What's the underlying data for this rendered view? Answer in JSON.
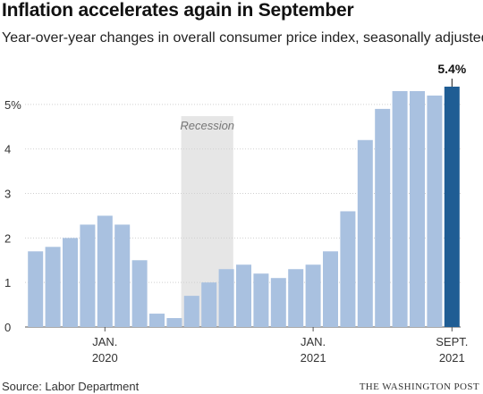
{
  "header": {
    "title": "Inflation accelerates again in September",
    "subtitle": "Year-over-year changes in overall consumer price index, seasonally adjusted"
  },
  "footer": {
    "source": "Source: Labor Department",
    "credit": "THE WASHINGTON POST"
  },
  "colors": {
    "bar": "#a9c1e0",
    "highlight_bar": "#1f5d94",
    "recession_band": "#e6e6e6",
    "gridline": "#d0d0d0",
    "text": "#222222"
  },
  "chart_data": {
    "type": "bar",
    "title": "Inflation accelerates again in September",
    "subtitle": "Year-over-year changes in overall consumer price index, seasonally adjusted",
    "categories": [
      "2019-09",
      "2019-10",
      "2019-11",
      "2019-12",
      "2020-01",
      "2020-02",
      "2020-03",
      "2020-04",
      "2020-05",
      "2020-06",
      "2020-07",
      "2020-08",
      "2020-09",
      "2020-10",
      "2020-11",
      "2020-12",
      "2021-01",
      "2021-02",
      "2021-03",
      "2021-04",
      "2021-05",
      "2021-06",
      "2021-07",
      "2021-08",
      "2021-09"
    ],
    "values": [
      1.7,
      1.8,
      2.0,
      2.3,
      2.5,
      2.3,
      1.5,
      0.3,
      0.2,
      0.7,
      1.0,
      1.3,
      1.4,
      1.2,
      1.1,
      1.3,
      1.4,
      1.7,
      2.6,
      4.2,
      4.9,
      5.3,
      5.3,
      5.2,
      5.4
    ],
    "highlight_index": 24,
    "highlight_label": "5.4%",
    "ylim": [
      0,
      5.5
    ],
    "yticks": [
      {
        "value": 0,
        "label": "0"
      },
      {
        "value": 1,
        "label": "1"
      },
      {
        "value": 2,
        "label": "2"
      },
      {
        "value": 3,
        "label": "3"
      },
      {
        "value": 4,
        "label": "4"
      },
      {
        "value": 5,
        "label": "5%"
      }
    ],
    "xticks": [
      {
        "index": 4,
        "line1": "JAN.",
        "line2": "2020"
      },
      {
        "index": 16,
        "line1": "JAN.",
        "line2": "2021"
      },
      {
        "index": 24,
        "line1": "SEPT.",
        "line2": "2021"
      }
    ],
    "recession": {
      "start_index": 9,
      "end_index": 11,
      "label": "Recession"
    },
    "grid": true,
    "xlabel": "",
    "ylabel": ""
  }
}
